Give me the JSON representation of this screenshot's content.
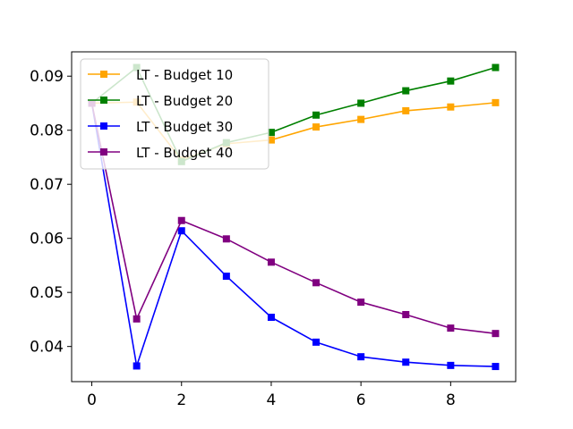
{
  "chart_data": {
    "type": "line",
    "title": "",
    "xlabel": "",
    "ylabel": "",
    "x": [
      0,
      1,
      2,
      3,
      4,
      5,
      6,
      7,
      8,
      9
    ],
    "xlim": [
      -0.45,
      9.45
    ],
    "ylim": [
      0.0335,
      0.0945
    ],
    "xticks": [
      0,
      2,
      4,
      6,
      8
    ],
    "yticks": [
      0.04,
      0.05,
      0.06,
      0.07,
      0.08,
      0.09
    ],
    "xtick_labels": [
      "0",
      "2",
      "4",
      "6",
      "8"
    ],
    "ytick_labels": [
      "0.04",
      "0.05",
      "0.06",
      "0.07",
      "0.08",
      "0.09"
    ],
    "grid": false,
    "legend_position": "upper-left",
    "marker": "square",
    "series": [
      {
        "name": "LT - Budget 10",
        "color": "#ffa500",
        "values": [
          0.085,
          0.0852,
          0.0745,
          0.0775,
          0.0782,
          0.0806,
          0.082,
          0.0836,
          0.0843,
          0.0851
        ]
      },
      {
        "name": "LT - Budget 20",
        "color": "#008000",
        "values": [
          0.085,
          0.0916,
          0.0742,
          0.0777,
          0.0796,
          0.0828,
          0.085,
          0.0873,
          0.0891,
          0.0916
        ]
      },
      {
        "name": "LT - Budget 30",
        "color": "#0000ff",
        "values": [
          0.085,
          0.0364,
          0.0614,
          0.053,
          0.0454,
          0.0408,
          0.0381,
          0.0371,
          0.0365,
          0.0363
        ]
      },
      {
        "name": "LT - Budget 40",
        "color": "#800080",
        "values": [
          0.085,
          0.0451,
          0.0633,
          0.0599,
          0.0556,
          0.0518,
          0.0482,
          0.0459,
          0.0434,
          0.0424
        ]
      }
    ]
  }
}
